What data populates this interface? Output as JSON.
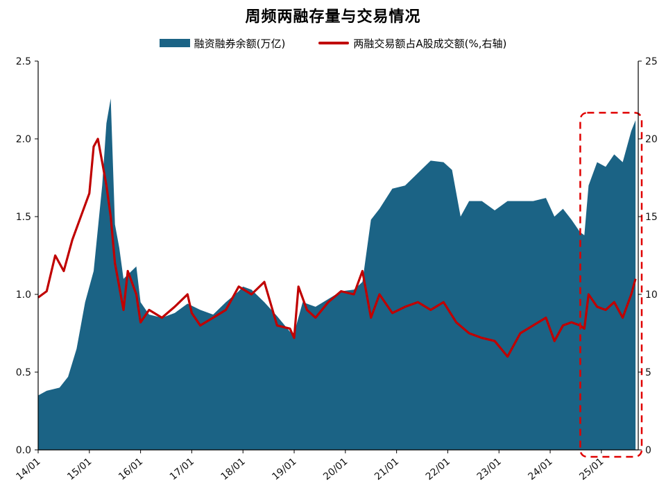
{
  "chart_data": {
    "type": "area",
    "title": "周频两融存量与交易情况",
    "x_tick_labels": [
      "14/01",
      "15/01",
      "16/01",
      "17/01",
      "18/01",
      "19/01",
      "20/01",
      "21/01",
      "22/01",
      "23/01",
      "24/01",
      "25/01"
    ],
    "ylim_left": [
      0,
      2.5
    ],
    "ylim_right": [
      0,
      25
    ],
    "yticks_left": [
      "0.0",
      "0.5",
      "1.0",
      "1.5",
      "2.0",
      "2.5"
    ],
    "yticks_right": [
      "0",
      "5",
      "10",
      "15",
      "20",
      "25"
    ],
    "grid": false,
    "legend_position": "top-center",
    "series": [
      {
        "name": "融资融券余额(万亿)",
        "type": "area",
        "axis": "left",
        "color": "#1b6385",
        "points": [
          [
            "2014-01",
            0.35
          ],
          [
            "2014-03",
            0.38
          ],
          [
            "2014-06",
            0.4
          ],
          [
            "2014-08",
            0.47
          ],
          [
            "2014-10",
            0.65
          ],
          [
            "2014-12",
            0.95
          ],
          [
            "2015-02",
            1.15
          ],
          [
            "2015-04",
            1.7
          ],
          [
            "2015-05",
            2.1
          ],
          [
            "2015-06",
            2.26
          ],
          [
            "2015-07",
            1.45
          ],
          [
            "2015-08",
            1.3
          ],
          [
            "2015-09",
            1.1
          ],
          [
            "2015-12",
            1.18
          ],
          [
            "2016-01",
            0.95
          ],
          [
            "2016-03",
            0.87
          ],
          [
            "2016-06",
            0.85
          ],
          [
            "2016-09",
            0.88
          ],
          [
            "2016-12",
            0.94
          ],
          [
            "2017-03",
            0.9
          ],
          [
            "2017-06",
            0.87
          ],
          [
            "2017-09",
            0.95
          ],
          [
            "2017-12",
            1.02
          ],
          [
            "2018-01",
            1.05
          ],
          [
            "2018-03",
            1.03
          ],
          [
            "2018-06",
            0.95
          ],
          [
            "2018-09",
            0.86
          ],
          [
            "2018-12",
            0.76
          ],
          [
            "2019-01",
            0.75
          ],
          [
            "2019-03",
            0.95
          ],
          [
            "2019-06",
            0.92
          ],
          [
            "2019-09",
            0.97
          ],
          [
            "2019-12",
            1.02
          ],
          [
            "2020-03",
            1.03
          ],
          [
            "2020-05",
            1.08
          ],
          [
            "2020-07",
            1.48
          ],
          [
            "2020-09",
            1.55
          ],
          [
            "2020-12",
            1.68
          ],
          [
            "2021-03",
            1.7
          ],
          [
            "2021-06",
            1.78
          ],
          [
            "2021-09",
            1.86
          ],
          [
            "2021-12",
            1.85
          ],
          [
            "2022-02",
            1.8
          ],
          [
            "2022-04",
            1.5
          ],
          [
            "2022-06",
            1.6
          ],
          [
            "2022-09",
            1.6
          ],
          [
            "2022-12",
            1.54
          ],
          [
            "2023-03",
            1.6
          ],
          [
            "2023-06",
            1.6
          ],
          [
            "2023-09",
            1.6
          ],
          [
            "2023-12",
            1.62
          ],
          [
            "2024-02",
            1.5
          ],
          [
            "2024-04",
            1.55
          ],
          [
            "2024-06",
            1.48
          ],
          [
            "2024-08",
            1.4
          ],
          [
            "2024-09",
            1.38
          ],
          [
            "2024-10",
            1.7
          ],
          [
            "2024-12",
            1.85
          ],
          [
            "2025-02",
            1.82
          ],
          [
            "2025-04",
            1.9
          ],
          [
            "2025-06",
            1.85
          ],
          [
            "2025-08",
            2.05
          ],
          [
            "2025-09",
            2.12
          ]
        ]
      },
      {
        "name": "两融交易额占A股成交额(%,右轴)",
        "type": "line",
        "axis": "right",
        "color": "#c00000",
        "points": [
          [
            "2014-01",
            9.8
          ],
          [
            "2014-03",
            10.2
          ],
          [
            "2014-05",
            12.5
          ],
          [
            "2014-07",
            11.5
          ],
          [
            "2014-09",
            13.5
          ],
          [
            "2014-11",
            15.0
          ],
          [
            "2015-01",
            16.5
          ],
          [
            "2015-02",
            19.5
          ],
          [
            "2015-03",
            20.0
          ],
          [
            "2015-04",
            18.5
          ],
          [
            "2015-05",
            17.0
          ],
          [
            "2015-06",
            15.0
          ],
          [
            "2015-07",
            12.0
          ],
          [
            "2015-08",
            10.5
          ],
          [
            "2015-09",
            9.0
          ],
          [
            "2015-10",
            11.5
          ],
          [
            "2015-12",
            10.0
          ],
          [
            "2016-01",
            8.2
          ],
          [
            "2016-03",
            9.0
          ],
          [
            "2016-06",
            8.5
          ],
          [
            "2016-09",
            9.2
          ],
          [
            "2016-12",
            10.0
          ],
          [
            "2017-01",
            8.8
          ],
          [
            "2017-03",
            8.0
          ],
          [
            "2017-06",
            8.5
          ],
          [
            "2017-09",
            9.0
          ],
          [
            "2017-12",
            10.5
          ],
          [
            "2018-03",
            10.0
          ],
          [
            "2018-06",
            10.8
          ],
          [
            "2018-09",
            8.0
          ],
          [
            "2018-12",
            7.8
          ],
          [
            "2019-01",
            7.2
          ],
          [
            "2019-02",
            10.5
          ],
          [
            "2019-04",
            9.0
          ],
          [
            "2019-06",
            8.5
          ],
          [
            "2019-09",
            9.5
          ],
          [
            "2019-12",
            10.2
          ],
          [
            "2020-03",
            10.0
          ],
          [
            "2020-05",
            11.5
          ],
          [
            "2020-07",
            8.5
          ],
          [
            "2020-09",
            10.0
          ],
          [
            "2020-12",
            8.8
          ],
          [
            "2021-03",
            9.2
          ],
          [
            "2021-06",
            9.5
          ],
          [
            "2021-09",
            9.0
          ],
          [
            "2021-12",
            9.5
          ],
          [
            "2022-03",
            8.2
          ],
          [
            "2022-06",
            7.5
          ],
          [
            "2022-09",
            7.2
          ],
          [
            "2022-12",
            7.0
          ],
          [
            "2023-03",
            6.0
          ],
          [
            "2023-06",
            7.5
          ],
          [
            "2023-09",
            8.0
          ],
          [
            "2023-12",
            8.5
          ],
          [
            "2024-02",
            7.0
          ],
          [
            "2024-04",
            8.0
          ],
          [
            "2024-06",
            8.2
          ],
          [
            "2024-08",
            8.0
          ],
          [
            "2024-09",
            7.8
          ],
          [
            "2024-10",
            10.0
          ],
          [
            "2024-12",
            9.2
          ],
          [
            "2025-02",
            9.0
          ],
          [
            "2025-04",
            9.5
          ],
          [
            "2025-06",
            8.5
          ],
          [
            "2025-08",
            10.0
          ],
          [
            "2025-09",
            11.0
          ]
        ]
      }
    ],
    "annotations": [
      {
        "type": "dashed-rectangle",
        "color": "#e00000",
        "x_range": [
          "2024-10",
          "2025-09"
        ],
        "y_range_left": [
          0,
          2.15
        ]
      }
    ]
  }
}
